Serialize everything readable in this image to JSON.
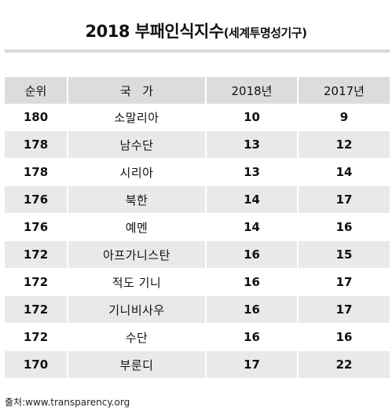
{
  "title": {
    "main": "2018 부패인식지수",
    "sub": "(세계투명성기구)"
  },
  "table": {
    "headers": [
      "순위",
      "국   가",
      "2018년",
      "2017년"
    ],
    "rows": [
      {
        "rank": "180",
        "country": "소말리아",
        "y2018": "10",
        "y2017": "9"
      },
      {
        "rank": "178",
        "country": "남수단",
        "y2018": "13",
        "y2017": "12"
      },
      {
        "rank": "178",
        "country": "시리아",
        "y2018": "13",
        "y2017": "14"
      },
      {
        "rank": "176",
        "country": "북한",
        "y2018": "14",
        "y2017": "17"
      },
      {
        "rank": "176",
        "country": "예멘",
        "y2018": "14",
        "y2017": "16"
      },
      {
        "rank": "172",
        "country": "아프가니스탄",
        "y2018": "16",
        "y2017": "15"
      },
      {
        "rank": "172",
        "country": "적도 기니",
        "y2018": "16",
        "y2017": "17"
      },
      {
        "rank": "172",
        "country": "기니비사우",
        "y2018": "16",
        "y2017": "17"
      },
      {
        "rank": "172",
        "country": "수단",
        "y2018": "16",
        "y2017": "16"
      },
      {
        "rank": "170",
        "country": "부룬디",
        "y2018": "17",
        "y2017": "22"
      }
    ]
  },
  "source": "출처:www.transparency.org"
}
